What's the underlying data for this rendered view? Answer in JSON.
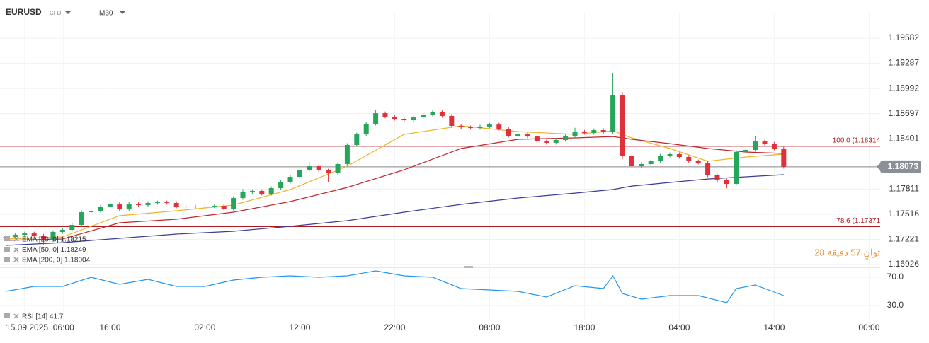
{
  "chart_data": {
    "type": "candlestick",
    "symbol": "EURUSD",
    "instrument_type": "CFD",
    "timeframe": "M30",
    "countdown": "28 ثوانٍ 57 دقيقة",
    "up_color": "#26a65b",
    "down_color": "#e0313b",
    "ylim": [
      1.16893,
      1.19881
    ],
    "yticks": [
      1.19582,
      1.19287,
      1.18992,
      1.18697,
      1.18401,
      1.17811,
      1.17516,
      1.17221,
      1.16926
    ],
    "grid": true,
    "xlim": [
      0,
      97
    ],
    "xticks": [
      {
        "value": 2,
        "label": "15.09.2025"
      },
      {
        "value": 6.1,
        "label": "06:00"
      },
      {
        "value": 11,
        "label": "16:00"
      },
      {
        "value": 21,
        "label": "02:00"
      },
      {
        "value": 31,
        "label": "12:00"
      },
      {
        "value": 41,
        "label": "22:00"
      },
      {
        "value": 51,
        "label": "08:00"
      },
      {
        "value": 61,
        "label": "18:00"
      },
      {
        "value": 71,
        "label": "04:00"
      },
      {
        "value": 81,
        "label": "14:00"
      },
      {
        "value": 91,
        "label": "00:00"
      }
    ],
    "current_price": 1.18073,
    "levels": [
      {
        "label": "100.0 (1.18314",
        "value": 1.18314,
        "color": "#b0191e"
      },
      {
        "label": "78.6 (1.17371",
        "value": 1.17371,
        "color": "#b0191e"
      }
    ],
    "ohlc": [
      [
        1.17233,
        1.1727,
        1.17213,
        1.1725
      ],
      [
        1.1725,
        1.17295,
        1.1723,
        1.17275
      ],
      [
        1.17275,
        1.17311,
        1.17255,
        1.17291
      ],
      [
        1.17291,
        1.17311,
        1.17246,
        1.17266
      ],
      [
        1.17266,
        1.17286,
        1.1716,
        1.17208
      ],
      [
        1.17208,
        1.17328,
        1.17188,
        1.17308
      ],
      [
        1.17308,
        1.17353,
        1.17288,
        1.17333
      ],
      [
        1.17333,
        1.17411,
        1.17313,
        1.17391
      ],
      [
        1.17391,
        1.1756,
        1.17371,
        1.1754
      ],
      [
        1.1754,
        1.176,
        1.1752,
        1.17557
      ],
      [
        1.17557,
        1.17627,
        1.17537,
        1.17607
      ],
      [
        1.17607,
        1.1768,
        1.17587,
        1.1764
      ],
      [
        1.1764,
        1.1766,
        1.17553,
        1.17573
      ],
      [
        1.17573,
        1.1766,
        1.17553,
        1.1764
      ],
      [
        1.1764,
        1.1766,
        1.17603,
        1.17623
      ],
      [
        1.17623,
        1.17668,
        1.17603,
        1.17648
      ],
      [
        1.17648,
        1.17676,
        1.17628,
        1.17656
      ],
      [
        1.17656,
        1.17676,
        1.17628,
        1.17648
      ],
      [
        1.17648,
        1.17668,
        1.17587,
        1.17607
      ],
      [
        1.17607,
        1.17627,
        1.17578,
        1.17598
      ],
      [
        1.17598,
        1.17627,
        1.17578,
        1.17607
      ],
      [
        1.17607,
        1.17627,
        1.17587,
        1.17607
      ],
      [
        1.17607,
        1.17635,
        1.17587,
        1.17615
      ],
      [
        1.17615,
        1.17635,
        1.17562,
        1.17582
      ],
      [
        1.17582,
        1.17726,
        1.17562,
        1.17706
      ],
      [
        1.17706,
        1.1781,
        1.17686,
        1.17773
      ],
      [
        1.17773,
        1.17809,
        1.17753,
        1.17789
      ],
      [
        1.17789,
        1.17809,
        1.17736,
        1.17756
      ],
      [
        1.17756,
        1.17842,
        1.17736,
        1.17822
      ],
      [
        1.17822,
        1.17917,
        1.17802,
        1.17897
      ],
      [
        1.17897,
        1.17975,
        1.17877,
        1.17955
      ],
      [
        1.17955,
        1.18058,
        1.17935,
        1.18038
      ],
      [
        1.18038,
        1.1813,
        1.18018,
        1.1808
      ],
      [
        1.1808,
        1.181,
        1.1801,
        1.1803
      ],
      [
        1.1803,
        1.1805,
        1.17889,
        1.17997
      ],
      [
        1.17997,
        1.18125,
        1.17977,
        1.18105
      ],
      [
        1.18105,
        1.18349,
        1.18085,
        1.18329
      ],
      [
        1.18329,
        1.18473,
        1.18309,
        1.18453
      ],
      [
        1.18453,
        1.18598,
        1.18433,
        1.18578
      ],
      [
        1.18578,
        1.1874,
        1.18558,
        1.18702
      ],
      [
        1.18702,
        1.18722,
        1.18641,
        1.18661
      ],
      [
        1.18661,
        1.18681,
        1.18616,
        1.18636
      ],
      [
        1.18636,
        1.18656,
        1.18599,
        1.18619
      ],
      [
        1.18619,
        1.18672,
        1.18599,
        1.18652
      ],
      [
        1.18652,
        1.18706,
        1.18632,
        1.18686
      ],
      [
        1.18686,
        1.18739,
        1.18666,
        1.18719
      ],
      [
        1.18719,
        1.18739,
        1.18649,
        1.18669
      ],
      [
        1.18669,
        1.18689,
        1.18533,
        1.18553
      ],
      [
        1.18553,
        1.18573,
        1.18516,
        1.18536
      ],
      [
        1.18536,
        1.18556,
        1.18508,
        1.18528
      ],
      [
        1.18528,
        1.18565,
        1.18508,
        1.18545
      ],
      [
        1.18545,
        1.18589,
        1.18525,
        1.18569
      ],
      [
        1.18569,
        1.18589,
        1.185,
        1.1852
      ],
      [
        1.1852,
        1.1854,
        1.18417,
        1.18437
      ],
      [
        1.18437,
        1.18473,
        1.18417,
        1.18453
      ],
      [
        1.18453,
        1.18473,
        1.18408,
        1.18428
      ],
      [
        1.18428,
        1.18448,
        1.1835,
        1.1837
      ],
      [
        1.1837,
        1.1839,
        1.18334,
        1.18354
      ],
      [
        1.18354,
        1.18407,
        1.18334,
        1.18387
      ],
      [
        1.18387,
        1.18457,
        1.18367,
        1.18437
      ],
      [
        1.18437,
        1.1853,
        1.18417,
        1.18486
      ],
      [
        1.18486,
        1.18506,
        1.1845,
        1.1847
      ],
      [
        1.1847,
        1.18523,
        1.1845,
        1.18503
      ],
      [
        1.18503,
        1.18523,
        1.18458,
        1.18478
      ],
      [
        1.18478,
        1.19175,
        1.18458,
        1.1891
      ],
      [
        1.1891,
        1.1895,
        1.18163,
        1.18204
      ],
      [
        1.18204,
        1.18224,
        1.1806,
        1.1808
      ],
      [
        1.1808,
        1.18125,
        1.1806,
        1.18105
      ],
      [
        1.18105,
        1.18158,
        1.18085,
        1.18138
      ],
      [
        1.18138,
        1.18224,
        1.18118,
        1.18204
      ],
      [
        1.18204,
        1.18241,
        1.18184,
        1.18221
      ],
      [
        1.18221,
        1.18241,
        1.18168,
        1.18188
      ],
      [
        1.18188,
        1.18208,
        1.18118,
        1.18138
      ],
      [
        1.18138,
        1.18158,
        1.18101,
        1.18121
      ],
      [
        1.18121,
        1.18141,
        1.17952,
        1.17972
      ],
      [
        1.17972,
        1.17992,
        1.17894,
        1.17914
      ],
      [
        1.17914,
        1.17934,
        1.1782,
        1.17872
      ],
      [
        1.17872,
        1.18266,
        1.17852,
        1.18246
      ],
      [
        1.18246,
        1.18291,
        1.18226,
        1.18271
      ],
      [
        1.18271,
        1.1843,
        1.18251,
        1.1837
      ],
      [
        1.1837,
        1.1839,
        1.18325,
        1.18345
      ],
      [
        1.18345,
        1.18365,
        1.18267,
        1.18287
      ],
      [
        1.18287,
        1.18307,
        1.18053,
        1.18073
      ]
    ],
    "series": [
      {
        "name": "EMA [20, 0] 1.18215",
        "color": "#f0b429",
        "x": [
          0,
          6,
          12,
          18,
          24,
          30,
          36,
          42,
          48,
          54,
          60,
          64,
          66,
          70,
          74,
          78,
          82
        ],
        "values": [
          1.17225,
          1.1725,
          1.17499,
          1.17557,
          1.17623,
          1.17806,
          1.1808,
          1.18453,
          1.18553,
          1.18486,
          1.18453,
          1.18495,
          1.18412,
          1.18287,
          1.18138,
          1.18188,
          1.18221
        ]
      },
      {
        "name": "EMA [50, 0] 1.18249",
        "color": "#c0282d",
        "x": [
          0,
          6,
          12,
          18,
          24,
          30,
          36,
          42,
          48,
          54,
          60,
          64,
          66,
          70,
          74,
          78,
          82
        ],
        "values": [
          1.17208,
          1.17225,
          1.17416,
          1.17457,
          1.1754,
          1.17665,
          1.17831,
          1.18038,
          1.18287,
          1.18395,
          1.18412,
          1.18428,
          1.18395,
          1.18345,
          1.18287,
          1.18246,
          1.18229
        ]
      },
      {
        "name": "EMA [200, 0] 1.18004",
        "color": "#3b3b9c",
        "x": [
          0,
          6,
          12,
          18,
          24,
          30,
          36,
          42,
          48,
          54,
          60,
          64,
          66,
          70,
          74,
          78,
          82
        ],
        "values": [
          1.1715,
          1.17183,
          1.17233,
          1.17283,
          1.17316,
          1.17374,
          1.17441,
          1.1754,
          1.17632,
          1.17706,
          1.17764,
          1.17806,
          1.17847,
          1.17889,
          1.1793,
          1.17955,
          1.1798
        ]
      }
    ],
    "rsi": {
      "name": "RSI [14] 41.7",
      "color": "#2196f3",
      "ylim": [
        10,
        84
      ],
      "yticks": [
        {
          "value": 70,
          "label": "70.0"
        },
        {
          "value": 30,
          "label": "30.0"
        }
      ],
      "x": [
        0,
        3,
        6,
        9,
        12,
        15,
        18,
        21,
        24,
        27,
        30,
        33,
        36,
        39,
        42,
        45,
        48,
        51,
        54,
        57,
        60,
        63,
        64,
        65,
        67,
        70,
        73,
        76,
        77,
        79,
        82
      ],
      "values": [
        50,
        57,
        57,
        70,
        60,
        67,
        57,
        57,
        66,
        70,
        72,
        70,
        72,
        79,
        72,
        70,
        54,
        52,
        50,
        42,
        58,
        54,
        72,
        47,
        39,
        44,
        44,
        34,
        54,
        59,
        44
      ]
    }
  }
}
